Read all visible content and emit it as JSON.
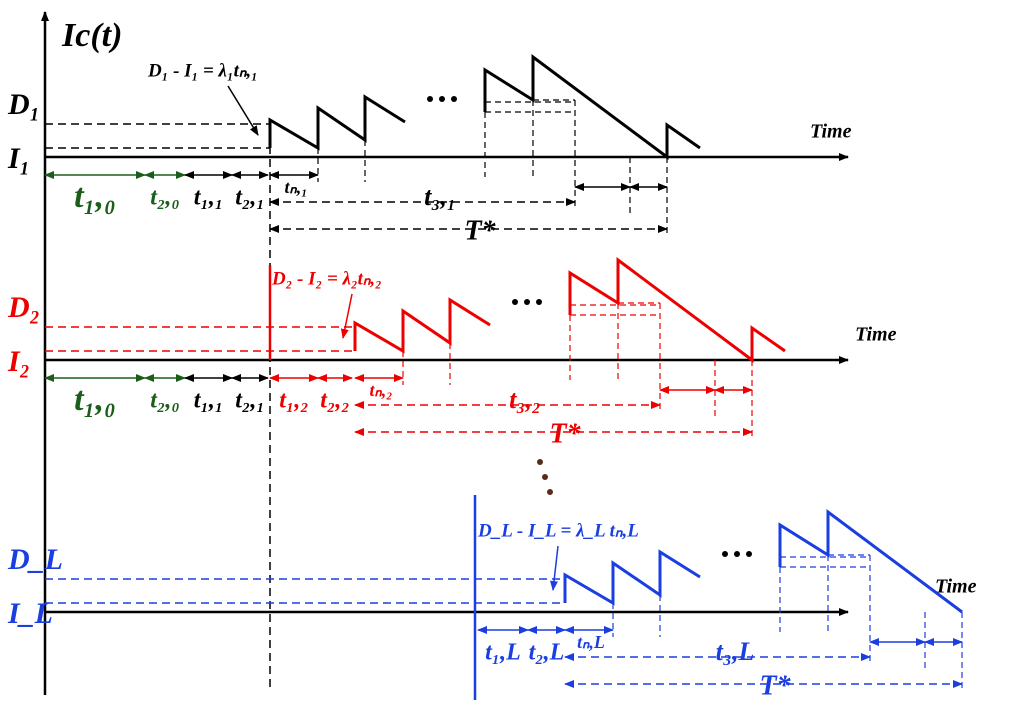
{
  "y_axis_label": "Ic(t)",
  "panels": [
    {
      "d_label": "D₁",
      "i_label": "I₁",
      "time_label": "Time",
      "equation": "D₁ - I₁ = λ₁tₙ,₁",
      "intervals": [
        "t₁,₀",
        "t₂,₀",
        "t₁,₁",
        "t₂,₁"
      ],
      "t_n": "tₙ,₁",
      "t_3": "t₃,₁",
      "period": "T*"
    },
    {
      "d_label": "D₂",
      "i_label": "I₂",
      "time_label": "Time",
      "equation": "D₂ - I₂ = λ₂tₙ,₂",
      "intervals": [
        "t₁,₀",
        "t₂,₀",
        "t₁,₁",
        "t₂,₁",
        "t₁,₂",
        "t₂,₂"
      ],
      "t_n": "tₙ,₂",
      "t_3": "t₃,₂",
      "period": "T*"
    },
    {
      "d_label": "D_L",
      "i_label": "I_L",
      "time_label": "Time",
      "equation": "D_L - I_L = λ_L tₙ,L",
      "intervals": [
        "t₁,L",
        "t₂,L"
      ],
      "t_n": "tₙ,L",
      "t_3": "t₃,L",
      "period": "T*"
    }
  ]
}
